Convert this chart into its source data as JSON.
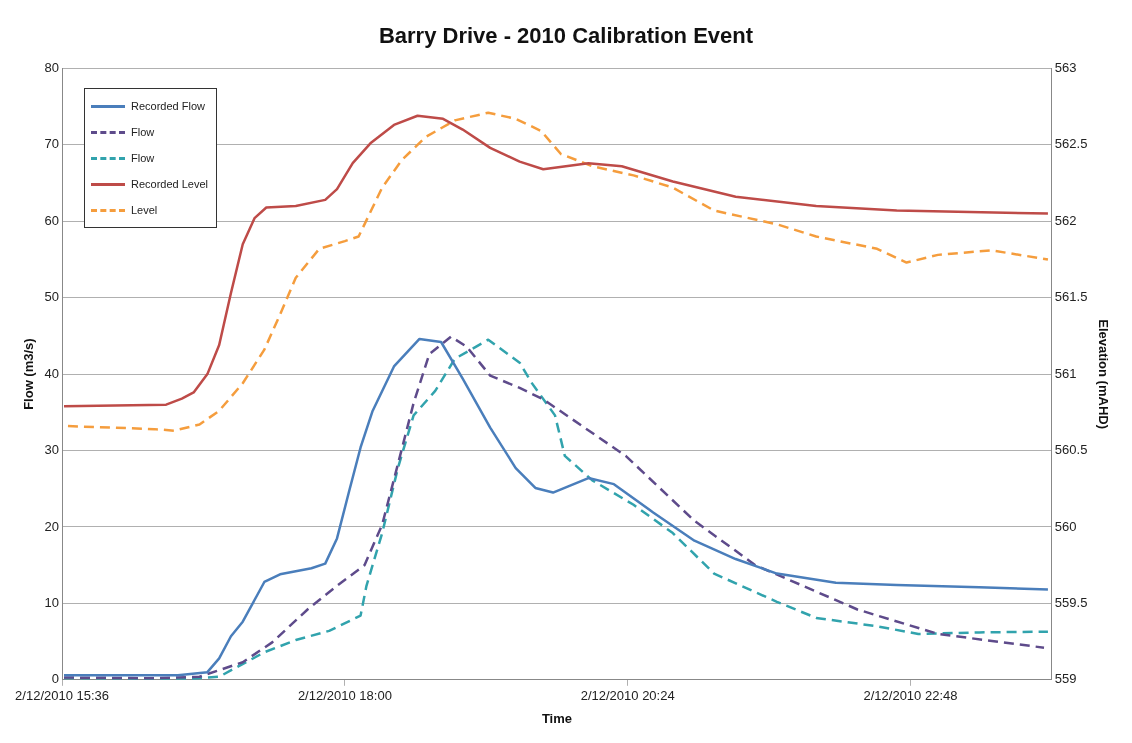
{
  "chart_data": {
    "type": "line",
    "title": "Barry Drive - 2010 Calibration Event",
    "xlabel": "Time",
    "ylabel": "Flow (m3/s)",
    "y2label": "Elevation (mAHD)",
    "xlim": [
      "2010-12-02T15:36",
      "2010-12-03T00:00"
    ],
    "xticks": [
      {
        "value": "2010-12-02T15:36",
        "label": "2/12/2010 15:36"
      },
      {
        "value": "2010-12-02T18:00",
        "label": "2/12/2010 18:00"
      },
      {
        "value": "2010-12-02T20:24",
        "label": "2/12/2010 20:24"
      },
      {
        "value": "2010-12-02T22:48",
        "label": "2/12/2010 22:48"
      }
    ],
    "ylim": [
      0,
      80
    ],
    "yticks": [
      0,
      10,
      20,
      30,
      40,
      50,
      60,
      70,
      80
    ],
    "y2lim": [
      559,
      563
    ],
    "y2ticks": [
      559,
      559.5,
      560,
      560.5,
      561,
      561.5,
      562,
      562.5,
      563
    ],
    "grid": "y",
    "legend": "top left",
    "marker": "none",
    "series": [
      {
        "name": "Recorded Flow",
        "color": "#4a7ebb",
        "line_style": "solid",
        "x": [
          "2010-12-02T15:37",
          "2010-12-02T16:35",
          "2010-12-02T16:50",
          "2010-12-02T16:56",
          "2010-12-02T17:02",
          "2010-12-02T17:08",
          "2010-12-02T17:19",
          "2010-12-02T17:27",
          "2010-12-02T17:43",
          "2010-12-02T17:50",
          "2010-12-02T17:56",
          "2010-12-02T18:02",
          "2010-12-02T18:08",
          "2010-12-02T18:14",
          "2010-12-02T18:25",
          "2010-12-02T18:38",
          "2010-12-02T18:49",
          "2010-12-02T19:00",
          "2010-12-02T19:14",
          "2010-12-02T19:27",
          "2010-12-02T19:37",
          "2010-12-02T19:46",
          "2010-12-02T20:04",
          "2010-12-02T20:17",
          "2010-12-02T20:37",
          "2010-12-02T20:58",
          "2010-12-02T21:19",
          "2010-12-02T21:40",
          "2010-12-02T22:10",
          "2010-12-02T22:41",
          "2010-12-02T23:23",
          "2010-12-02T23:58"
        ],
        "values": [
          0.6,
          0.6,
          1.0,
          2.8,
          5.7,
          7.6,
          12.8,
          13.8,
          14.6,
          15.2,
          18.5,
          24.5,
          30.4,
          35.1,
          41,
          44.6,
          44.2,
          39.4,
          33,
          27.7,
          25.1,
          24.5,
          26.4,
          25.6,
          21.9,
          18.2,
          15.8,
          13.9,
          12.7,
          12.4,
          12.1,
          11.8
        ]
      },
      {
        "name": "Flow",
        "color": "#5e4b8b",
        "line_style": "dashed",
        "x": [
          "2010-12-02T15:37",
          "2010-12-02T16:23",
          "2010-12-02T16:46",
          "2010-12-02T17:08",
          "2010-12-02T17:23",
          "2010-12-02T17:41",
          "2010-12-02T17:56",
          "2010-12-02T18:10",
          "2010-12-02T18:19",
          "2010-12-02T18:27",
          "2010-12-02T18:35",
          "2010-12-02T18:43",
          "2010-12-02T18:54",
          "2010-12-02T19:02",
          "2010-12-02T19:14",
          "2010-12-02T19:29",
          "2010-12-02T19:41",
          "2010-12-02T20:23",
          "2010-12-02T20:58",
          "2010-12-02T21:29",
          "2010-12-02T22:21",
          "2010-12-02T23:02",
          "2010-12-02T23:56"
        ],
        "values": [
          0.3,
          0.2,
          0.4,
          2.3,
          4.9,
          9.2,
          12.3,
          15,
          20.3,
          28.2,
          36.2,
          42.6,
          44.9,
          43.6,
          39.8,
          38.2,
          36.7,
          29.3,
          20.8,
          15,
          9.2,
          6,
          4.2
        ]
      },
      {
        "name": "Flow",
        "color": "#31a3ad",
        "line_style": "dashed",
        "x": [
          "2010-12-02T15:37",
          "2010-12-02T16:41",
          "2010-12-02T16:56",
          "2010-12-02T17:19",
          "2010-12-02T17:35",
          "2010-12-02T17:52",
          "2010-12-02T18:08",
          "2010-12-02T18:11",
          "2010-12-02T18:19",
          "2010-12-02T18:27",
          "2010-12-02T18:35",
          "2010-12-02T18:46",
          "2010-12-02T18:56",
          "2010-12-02T19:13",
          "2010-12-02T19:29",
          "2010-12-02T19:35",
          "2010-12-02T19:47",
          "2010-12-02T19:52",
          "2010-12-02T20:06",
          "2010-12-02T20:27",
          "2010-12-02T20:47",
          "2010-12-02T21:08",
          "2010-12-02T21:40",
          "2010-12-02T22:00",
          "2010-12-02T22:31",
          "2010-12-02T22:52",
          "2010-12-02T23:23",
          "2010-12-02T23:58"
        ],
        "values": [
          0.2,
          0.1,
          0.4,
          3.6,
          5.2,
          6.4,
          8.4,
          12.3,
          19.2,
          27.7,
          34.6,
          37.8,
          42,
          44.5,
          41.5,
          38.9,
          34.6,
          29.3,
          26.1,
          22.9,
          19.2,
          13.9,
          10.2,
          8.1,
          7,
          6,
          6.2,
          6.3
        ]
      },
      {
        "name": "Recorded Level",
        "color": "#be4b48",
        "line_style": "solid",
        "axis": "y2",
        "x": [
          "2010-12-02T15:37",
          "2010-12-02T16:29",
          "2010-12-02T16:37",
          "2010-12-02T16:43",
          "2010-12-02T16:50",
          "2010-12-02T16:56",
          "2010-12-02T17:02",
          "2010-12-02T17:08",
          "2010-12-02T17:14",
          "2010-12-02T17:20",
          "2010-12-02T17:35",
          "2010-12-02T17:50",
          "2010-12-02T17:56",
          "2010-12-02T18:04",
          "2010-12-02T18:13",
          "2010-12-02T18:25",
          "2010-12-02T18:37",
          "2010-12-02T18:50",
          "2010-12-02T19:00",
          "2010-12-02T19:14",
          "2010-12-02T19:29",
          "2010-12-02T19:41",
          "2010-12-02T20:04",
          "2010-12-02T20:21",
          "2010-12-02T20:47",
          "2010-12-02T21:19",
          "2010-12-02T22:00",
          "2010-12-02T22:41",
          "2010-12-02T23:58"
        ],
        "values": [
          560.79,
          560.8,
          560.84,
          560.88,
          561.0,
          561.19,
          561.53,
          561.85,
          562.02,
          562.09,
          562.1,
          562.14,
          562.21,
          562.38,
          562.51,
          562.63,
          562.69,
          562.67,
          562.6,
          562.48,
          562.39,
          562.34,
          562.38,
          562.36,
          562.26,
          562.16,
          562.1,
          562.07,
          562.05
        ]
      },
      {
        "name": "Level",
        "color": "#f59d3d",
        "line_style": "dashed",
        "axis": "y2",
        "x": [
          "2010-12-02T15:39",
          "2010-12-02T16:23",
          "2010-12-02T16:33",
          "2010-12-02T16:46",
          "2010-12-02T16:56",
          "2010-12-02T17:08",
          "2010-12-02T17:19",
          "2010-12-02T17:27",
          "2010-12-02T17:35",
          "2010-12-02T17:47",
          "2010-12-02T18:00",
          "2010-12-02T18:07",
          "2010-12-02T18:13",
          "2010-12-02T18:19",
          "2010-12-02T18:29",
          "2010-12-02T18:41",
          "2010-12-02T18:56",
          "2010-12-02T19:13",
          "2010-12-02T19:27",
          "2010-12-02T19:40",
          "2010-12-02T19:50",
          "2010-12-02T20:06",
          "2010-12-02T20:27",
          "2010-12-02T20:47",
          "2010-12-02T21:08",
          "2010-12-02T21:40",
          "2010-12-02T22:00",
          "2010-12-02T22:31",
          "2010-12-02T22:46",
          "2010-12-02T23:02",
          "2010-12-02T23:29",
          "2010-12-02T23:58"
        ],
        "values": [
          560.66,
          560.64,
          560.63,
          560.67,
          560.76,
          560.94,
          561.16,
          561.39,
          561.63,
          561.82,
          561.87,
          561.9,
          562.06,
          562.22,
          562.4,
          562.55,
          562.66,
          562.71,
          562.67,
          562.59,
          562.44,
          562.36,
          562.3,
          562.22,
          562.07,
          561.98,
          561.9,
          561.82,
          561.73,
          561.78,
          561.81,
          561.75
        ]
      }
    ]
  }
}
